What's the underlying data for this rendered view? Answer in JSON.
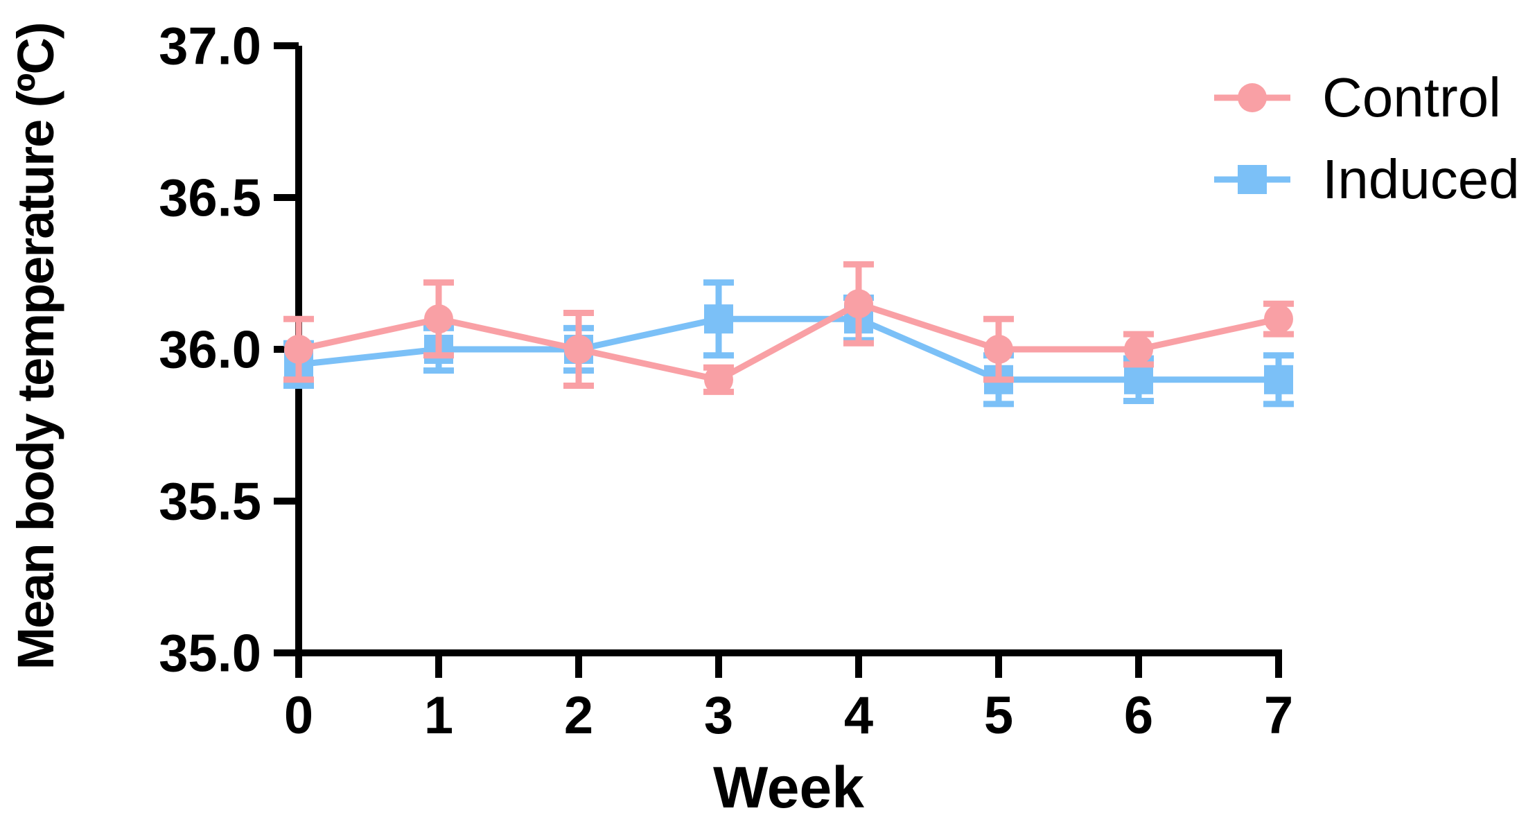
{
  "chart_data": {
    "type": "line",
    "title": "",
    "xlabel": "Week",
    "ylabel": "Mean body temperature (ºC)",
    "x": [
      0,
      1,
      2,
      3,
      4,
      5,
      6,
      7
    ],
    "xticks": [
      "0",
      "1",
      "2",
      "3",
      "4",
      "5",
      "6",
      "7"
    ],
    "yticks": [
      35.0,
      35.5,
      36.0,
      36.5,
      37.0
    ],
    "ytick_labels": [
      "35.0",
      "35.5",
      "36.0",
      "36.5",
      "37.0"
    ],
    "ylim": [
      35.0,
      37.0
    ],
    "xlim": [
      0,
      7
    ],
    "grid": false,
    "legend_position": "top-right",
    "error_bars": "symmetric, cap style T, shown above and below each point",
    "axis_color": "#000000",
    "series": [
      {
        "name": "Control",
        "marker": "circle",
        "color": "#F9A0A5",
        "values": [
          36.0,
          36.1,
          36.0,
          35.9,
          36.15,
          36.0,
          36.0,
          36.1
        ],
        "errors": [
          0.1,
          0.12,
          0.12,
          0.04,
          0.13,
          0.1,
          0.05,
          0.05
        ]
      },
      {
        "name": "Induced",
        "marker": "square",
        "color": "#7BC0F7",
        "values": [
          35.95,
          36.0,
          36.0,
          36.1,
          36.1,
          35.9,
          35.9,
          35.9
        ],
        "errors": [
          0.07,
          0.07,
          0.07,
          0.12,
          0.07,
          0.08,
          0.07,
          0.08
        ]
      }
    ]
  }
}
